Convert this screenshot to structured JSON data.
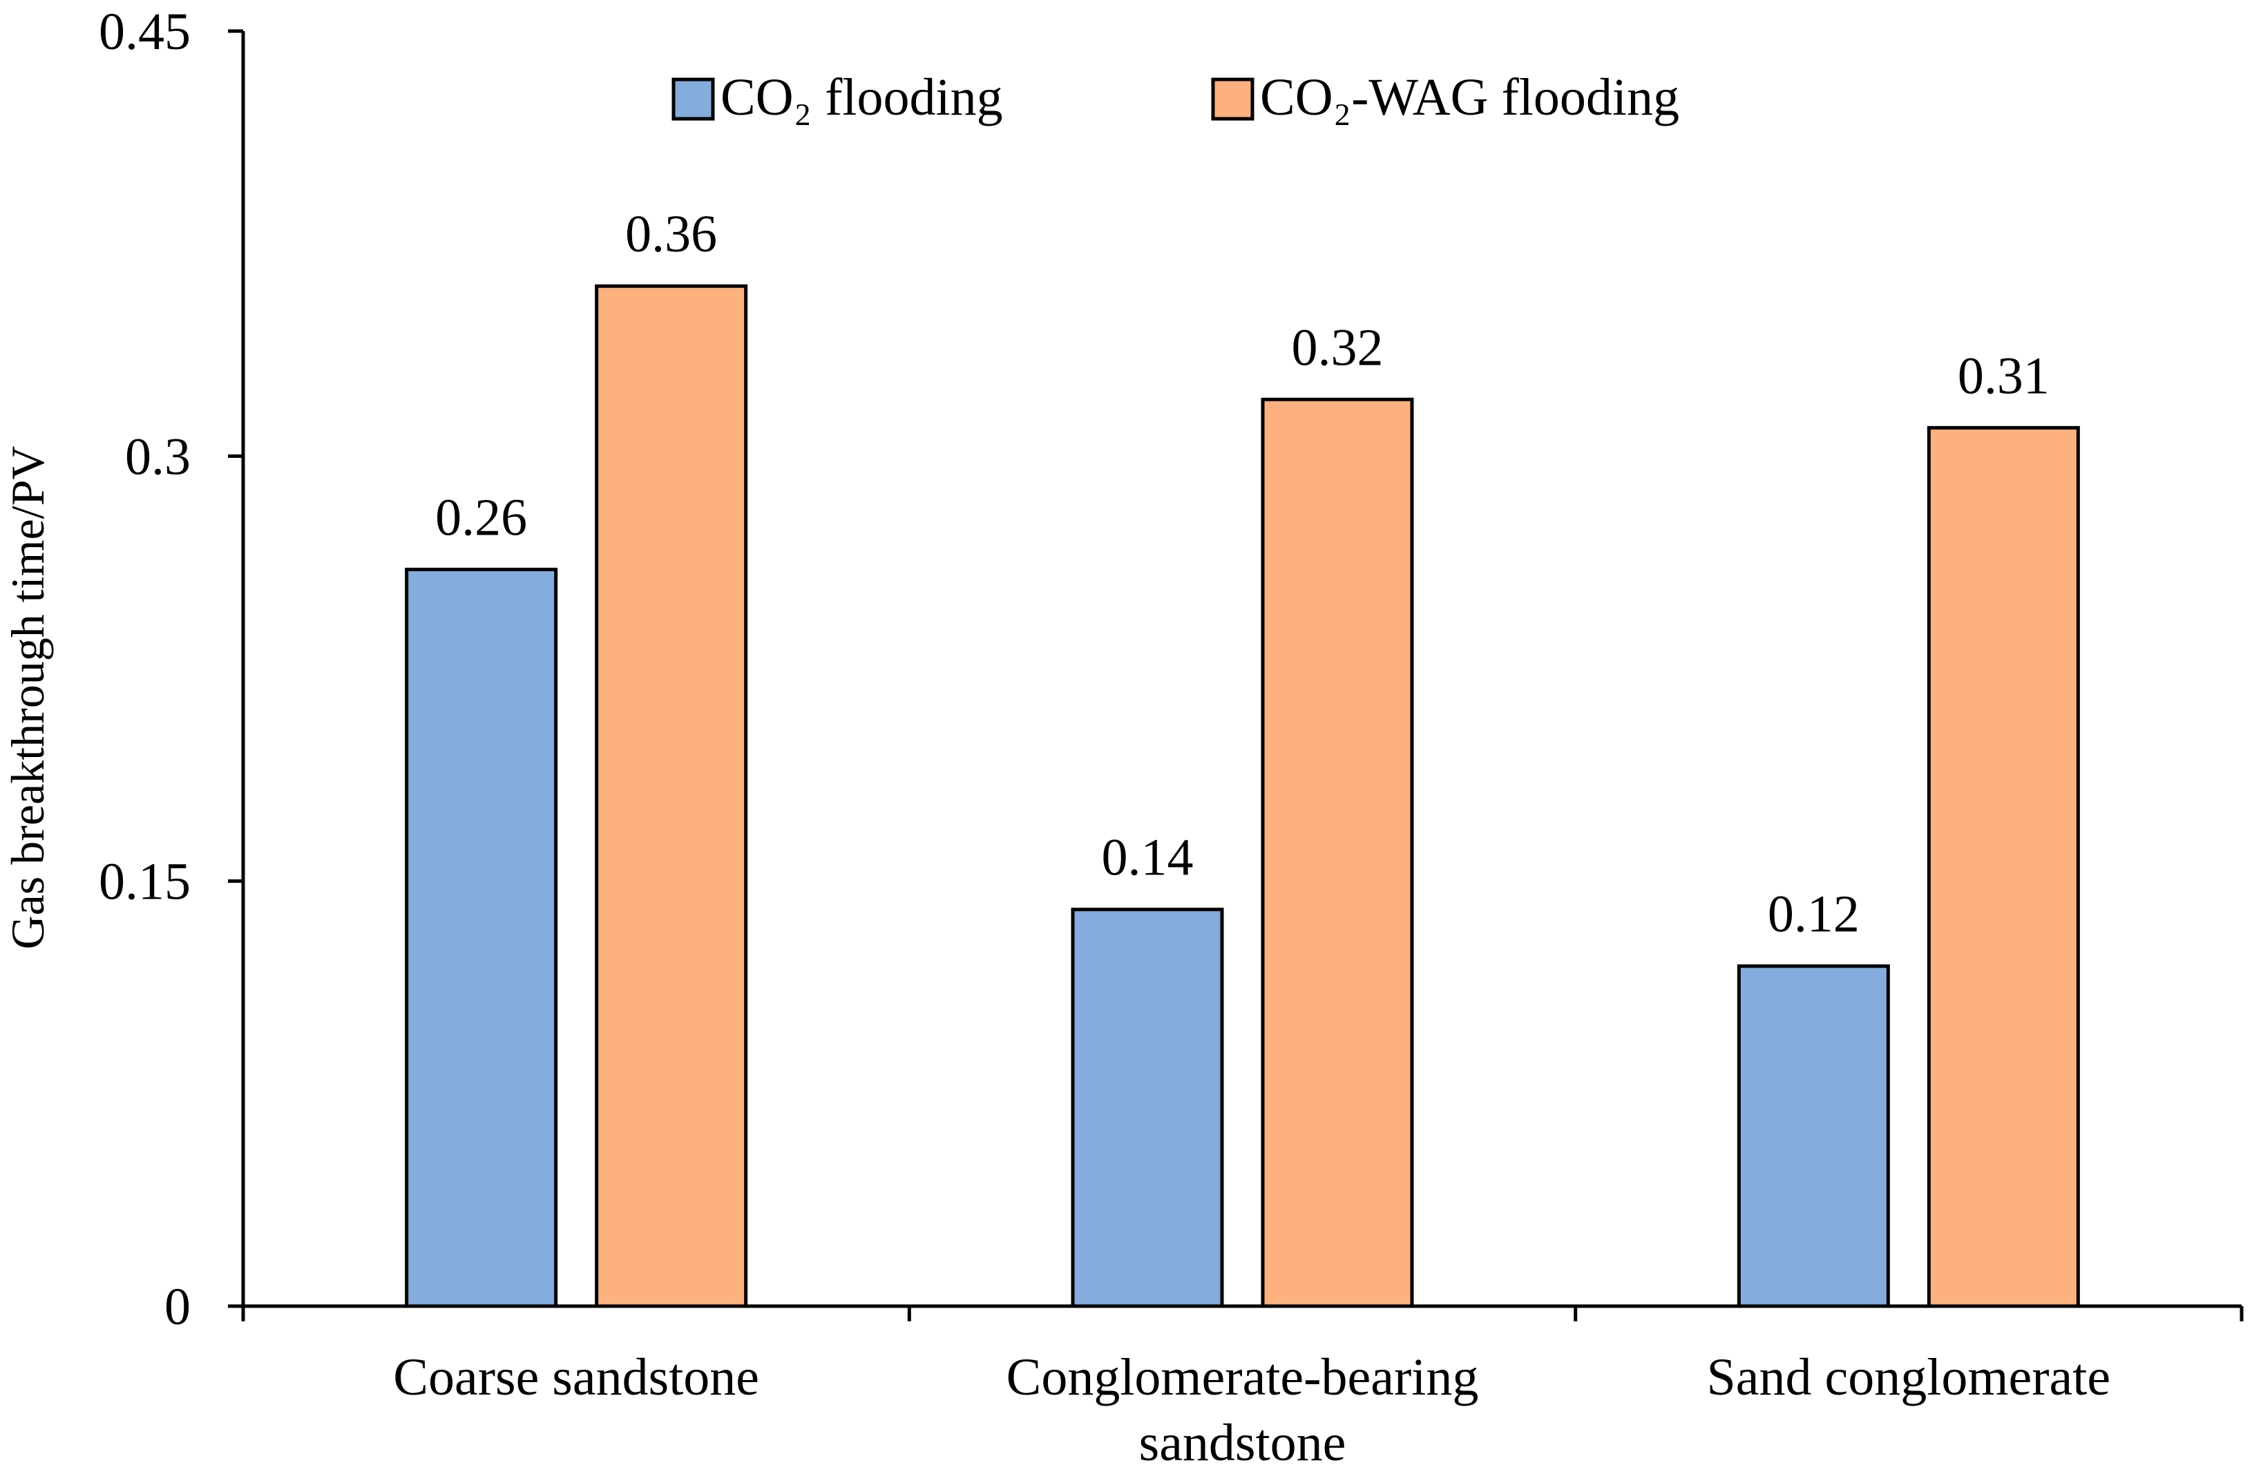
{
  "chart_data": {
    "type": "bar",
    "categories": [
      [
        "Coarse sandstone"
      ],
      [
        "Conglomerate-bearing",
        "sandstone"
      ],
      [
        "Sand conglomerate"
      ]
    ],
    "series": [
      {
        "name": "CO₂ flooding",
        "values": [
          0.26,
          0.14,
          0.12
        ],
        "color": "#84ACDD"
      },
      {
        "name": "CO₂-WAG flooding",
        "values": [
          0.36,
          0.32,
          0.31
        ],
        "color": "#FCB17E"
      }
    ],
    "data_labels": [
      [
        "0.26",
        "0.14",
        "0.12"
      ],
      [
        "0.36",
        "0.32",
        "0.31"
      ]
    ],
    "title": "",
    "xlabel": "",
    "ylabel": "Gas breakthrough time/PV",
    "ylim": [
      0,
      0.45
    ],
    "yticks": [
      0,
      0.15,
      0.3,
      0.45
    ],
    "ytick_labels": [
      "0",
      "0.15",
      "0.3",
      "0.45"
    ],
    "grid": false,
    "legend": "top-center",
    "edge_color": "#000000"
  }
}
